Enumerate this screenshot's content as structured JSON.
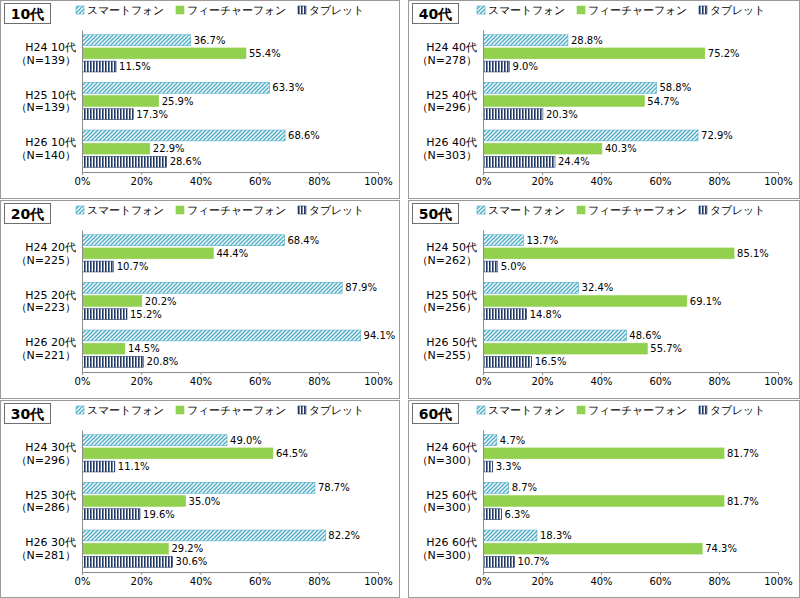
{
  "chart_data": [
    {
      "type": "bar",
      "orientation": "horizontal",
      "title": "10代",
      "legend": "top",
      "grid": false,
      "data_labels": true,
      "categories": [
        "H24 10代\n（N=139）",
        "H25 10代\n（N=139）",
        "H26 10代\n（N=140）"
      ],
      "xlim": [
        0,
        100
      ],
      "xticks": [
        {
          "value": 0,
          "label": "0%"
        },
        {
          "value": 20,
          "label": "20%"
        },
        {
          "value": 40,
          "label": "40%"
        },
        {
          "value": 60,
          "label": "60%"
        },
        {
          "value": 80,
          "label": "80%"
        },
        {
          "value": 100,
          "label": "100%"
        }
      ],
      "series": [
        {
          "name": "スマートフォン",
          "color": "#4bacc6",
          "values": [
            36.7,
            63.3,
            68.6
          ],
          "value_labels": [
            "36.7%",
            "63.3%",
            "68.6%"
          ]
        },
        {
          "name": "フィーチャーフォン",
          "color": "#92d050",
          "values": [
            55.4,
            25.9,
            22.9
          ],
          "value_labels": [
            "55.4%",
            "25.9%",
            "22.9%"
          ]
        },
        {
          "name": "タブレット",
          "color": "#1f3864",
          "values": [
            11.5,
            17.3,
            28.6
          ],
          "value_labels": [
            "11.5%",
            "17.3%",
            "28.6%"
          ]
        }
      ]
    },
    {
      "type": "bar",
      "orientation": "horizontal",
      "title": "20代",
      "legend": "top",
      "grid": false,
      "data_labels": true,
      "categories": [
        "H24 20代\n（N=225）",
        "H25 20代\n（N=223）",
        "H26 20代\n（N=221）"
      ],
      "xlim": [
        0,
        100
      ],
      "xticks": [
        {
          "value": 0,
          "label": "0%"
        },
        {
          "value": 20,
          "label": "20%"
        },
        {
          "value": 40,
          "label": "40%"
        },
        {
          "value": 60,
          "label": "60%"
        },
        {
          "value": 80,
          "label": "80%"
        },
        {
          "value": 100,
          "label": "100%"
        }
      ],
      "series": [
        {
          "name": "スマートフォン",
          "color": "#4bacc6",
          "values": [
            68.4,
            87.9,
            94.1
          ],
          "value_labels": [
            "68.4%",
            "87.9%",
            "94.1%"
          ]
        },
        {
          "name": "フィーチャーフォン",
          "color": "#92d050",
          "values": [
            44.4,
            20.2,
            14.5
          ],
          "value_labels": [
            "44.4%",
            "20.2%",
            "14.5%"
          ]
        },
        {
          "name": "タブレット",
          "color": "#1f3864",
          "values": [
            10.7,
            15.2,
            20.8
          ],
          "value_labels": [
            "10.7%",
            "15.2%",
            "20.8%"
          ]
        }
      ]
    },
    {
      "type": "bar",
      "orientation": "horizontal",
      "title": "30代",
      "legend": "top",
      "grid": false,
      "data_labels": true,
      "categories": [
        "H24 30代\n（N=296）",
        "H25 30代\n（N=286）",
        "H26 30代\n（N=281）"
      ],
      "xlim": [
        0,
        100
      ],
      "xticks": [
        {
          "value": 0,
          "label": "0%"
        },
        {
          "value": 20,
          "label": "20%"
        },
        {
          "value": 40,
          "label": "40%"
        },
        {
          "value": 60,
          "label": "60%"
        },
        {
          "value": 80,
          "label": "80%"
        },
        {
          "value": 100,
          "label": "100%"
        }
      ],
      "series": [
        {
          "name": "スマートフォン",
          "color": "#4bacc6",
          "values": [
            49.0,
            78.7,
            82.2
          ],
          "value_labels": [
            "49.0%",
            "78.7%",
            "82.2%"
          ]
        },
        {
          "name": "フィーチャーフォン",
          "color": "#92d050",
          "values": [
            64.5,
            35.0,
            29.2
          ],
          "value_labels": [
            "64.5%",
            "35.0%",
            "29.2%"
          ]
        },
        {
          "name": "タブレット",
          "color": "#1f3864",
          "values": [
            11.1,
            19.6,
            30.6
          ],
          "value_labels": [
            "11.1%",
            "19.6%",
            "30.6%"
          ]
        }
      ]
    },
    {
      "type": "bar",
      "orientation": "horizontal",
      "title": "40代",
      "legend": "top",
      "grid": false,
      "data_labels": true,
      "categories": [
        "H24 40代\n（N=278）",
        "H25 40代\n（N=296）",
        "H26 40代\n（N=303）"
      ],
      "xlim": [
        0,
        100
      ],
      "xticks": [
        {
          "value": 0,
          "label": "0%"
        },
        {
          "value": 20,
          "label": "20%"
        },
        {
          "value": 40,
          "label": "40%"
        },
        {
          "value": 60,
          "label": "60%"
        },
        {
          "value": 80,
          "label": "80%"
        },
        {
          "value": 100,
          "label": "100%"
        }
      ],
      "series": [
        {
          "name": "スマートフォン",
          "color": "#4bacc6",
          "values": [
            28.8,
            58.8,
            72.9
          ],
          "value_labels": [
            "28.8%",
            "58.8%",
            "72.9%"
          ]
        },
        {
          "name": "フィーチャーフォン",
          "color": "#92d050",
          "values": [
            75.2,
            54.7,
            40.3
          ],
          "value_labels": [
            "75.2%",
            "54.7%",
            "40.3%"
          ]
        },
        {
          "name": "タブレット",
          "color": "#1f3864",
          "values": [
            9.0,
            20.3,
            24.4
          ],
          "value_labels": [
            "9.0%",
            "20.3%",
            "24.4%"
          ]
        }
      ]
    },
    {
      "type": "bar",
      "orientation": "horizontal",
      "title": "50代",
      "legend": "top",
      "grid": false,
      "data_labels": true,
      "categories": [
        "H24 50代\n（N=262）",
        "H25 50代\n（N=256）",
        "H26 50代\n（N=255）"
      ],
      "xlim": [
        0,
        100
      ],
      "xticks": [
        {
          "value": 0,
          "label": "0%"
        },
        {
          "value": 20,
          "label": "20%"
        },
        {
          "value": 40,
          "label": "40%"
        },
        {
          "value": 60,
          "label": "60%"
        },
        {
          "value": 80,
          "label": "80%"
        },
        {
          "value": 100,
          "label": "100%"
        }
      ],
      "series": [
        {
          "name": "スマートフォン",
          "color": "#4bacc6",
          "values": [
            13.7,
            32.4,
            48.6
          ],
          "value_labels": [
            "13.7%",
            "32.4%",
            "48.6%"
          ]
        },
        {
          "name": "フィーチャーフォン",
          "color": "#92d050",
          "values": [
            85.1,
            69.1,
            55.7
          ],
          "value_labels": [
            "85.1%",
            "69.1%",
            "55.7%"
          ]
        },
        {
          "name": "タブレット",
          "color": "#1f3864",
          "values": [
            5.0,
            14.8,
            16.5
          ],
          "value_labels": [
            "5.0%",
            "14.8%",
            "16.5%"
          ]
        }
      ]
    },
    {
      "type": "bar",
      "orientation": "horizontal",
      "title": "60代",
      "legend": "top",
      "grid": false,
      "data_labels": true,
      "categories": [
        "H24 60代\n（N=300）",
        "H25 60代\n（N=300）",
        "H26 60代\n（N=300）"
      ],
      "xlim": [
        0,
        100
      ],
      "xticks": [
        {
          "value": 0,
          "label": "0%"
        },
        {
          "value": 20,
          "label": "20%"
        },
        {
          "value": 40,
          "label": "40%"
        },
        {
          "value": 60,
          "label": "60%"
        },
        {
          "value": 80,
          "label": "80%"
        },
        {
          "value": 100,
          "label": "100%"
        }
      ],
      "series": [
        {
          "name": "スマートフォン",
          "color": "#4bacc6",
          "values": [
            4.7,
            8.7,
            18.3
          ],
          "value_labels": [
            "4.7%",
            "8.7%",
            "18.3%"
          ]
        },
        {
          "name": "フィーチャーフォン",
          "color": "#92d050",
          "values": [
            81.7,
            81.7,
            74.3
          ],
          "value_labels": [
            "81.7%",
            "81.7%",
            "74.3%"
          ]
        },
        {
          "name": "タブレット",
          "color": "#1f3864",
          "values": [
            3.3,
            6.3,
            10.7
          ],
          "value_labels": [
            "3.3%",
            "6.3%",
            "10.7%"
          ]
        }
      ]
    }
  ]
}
